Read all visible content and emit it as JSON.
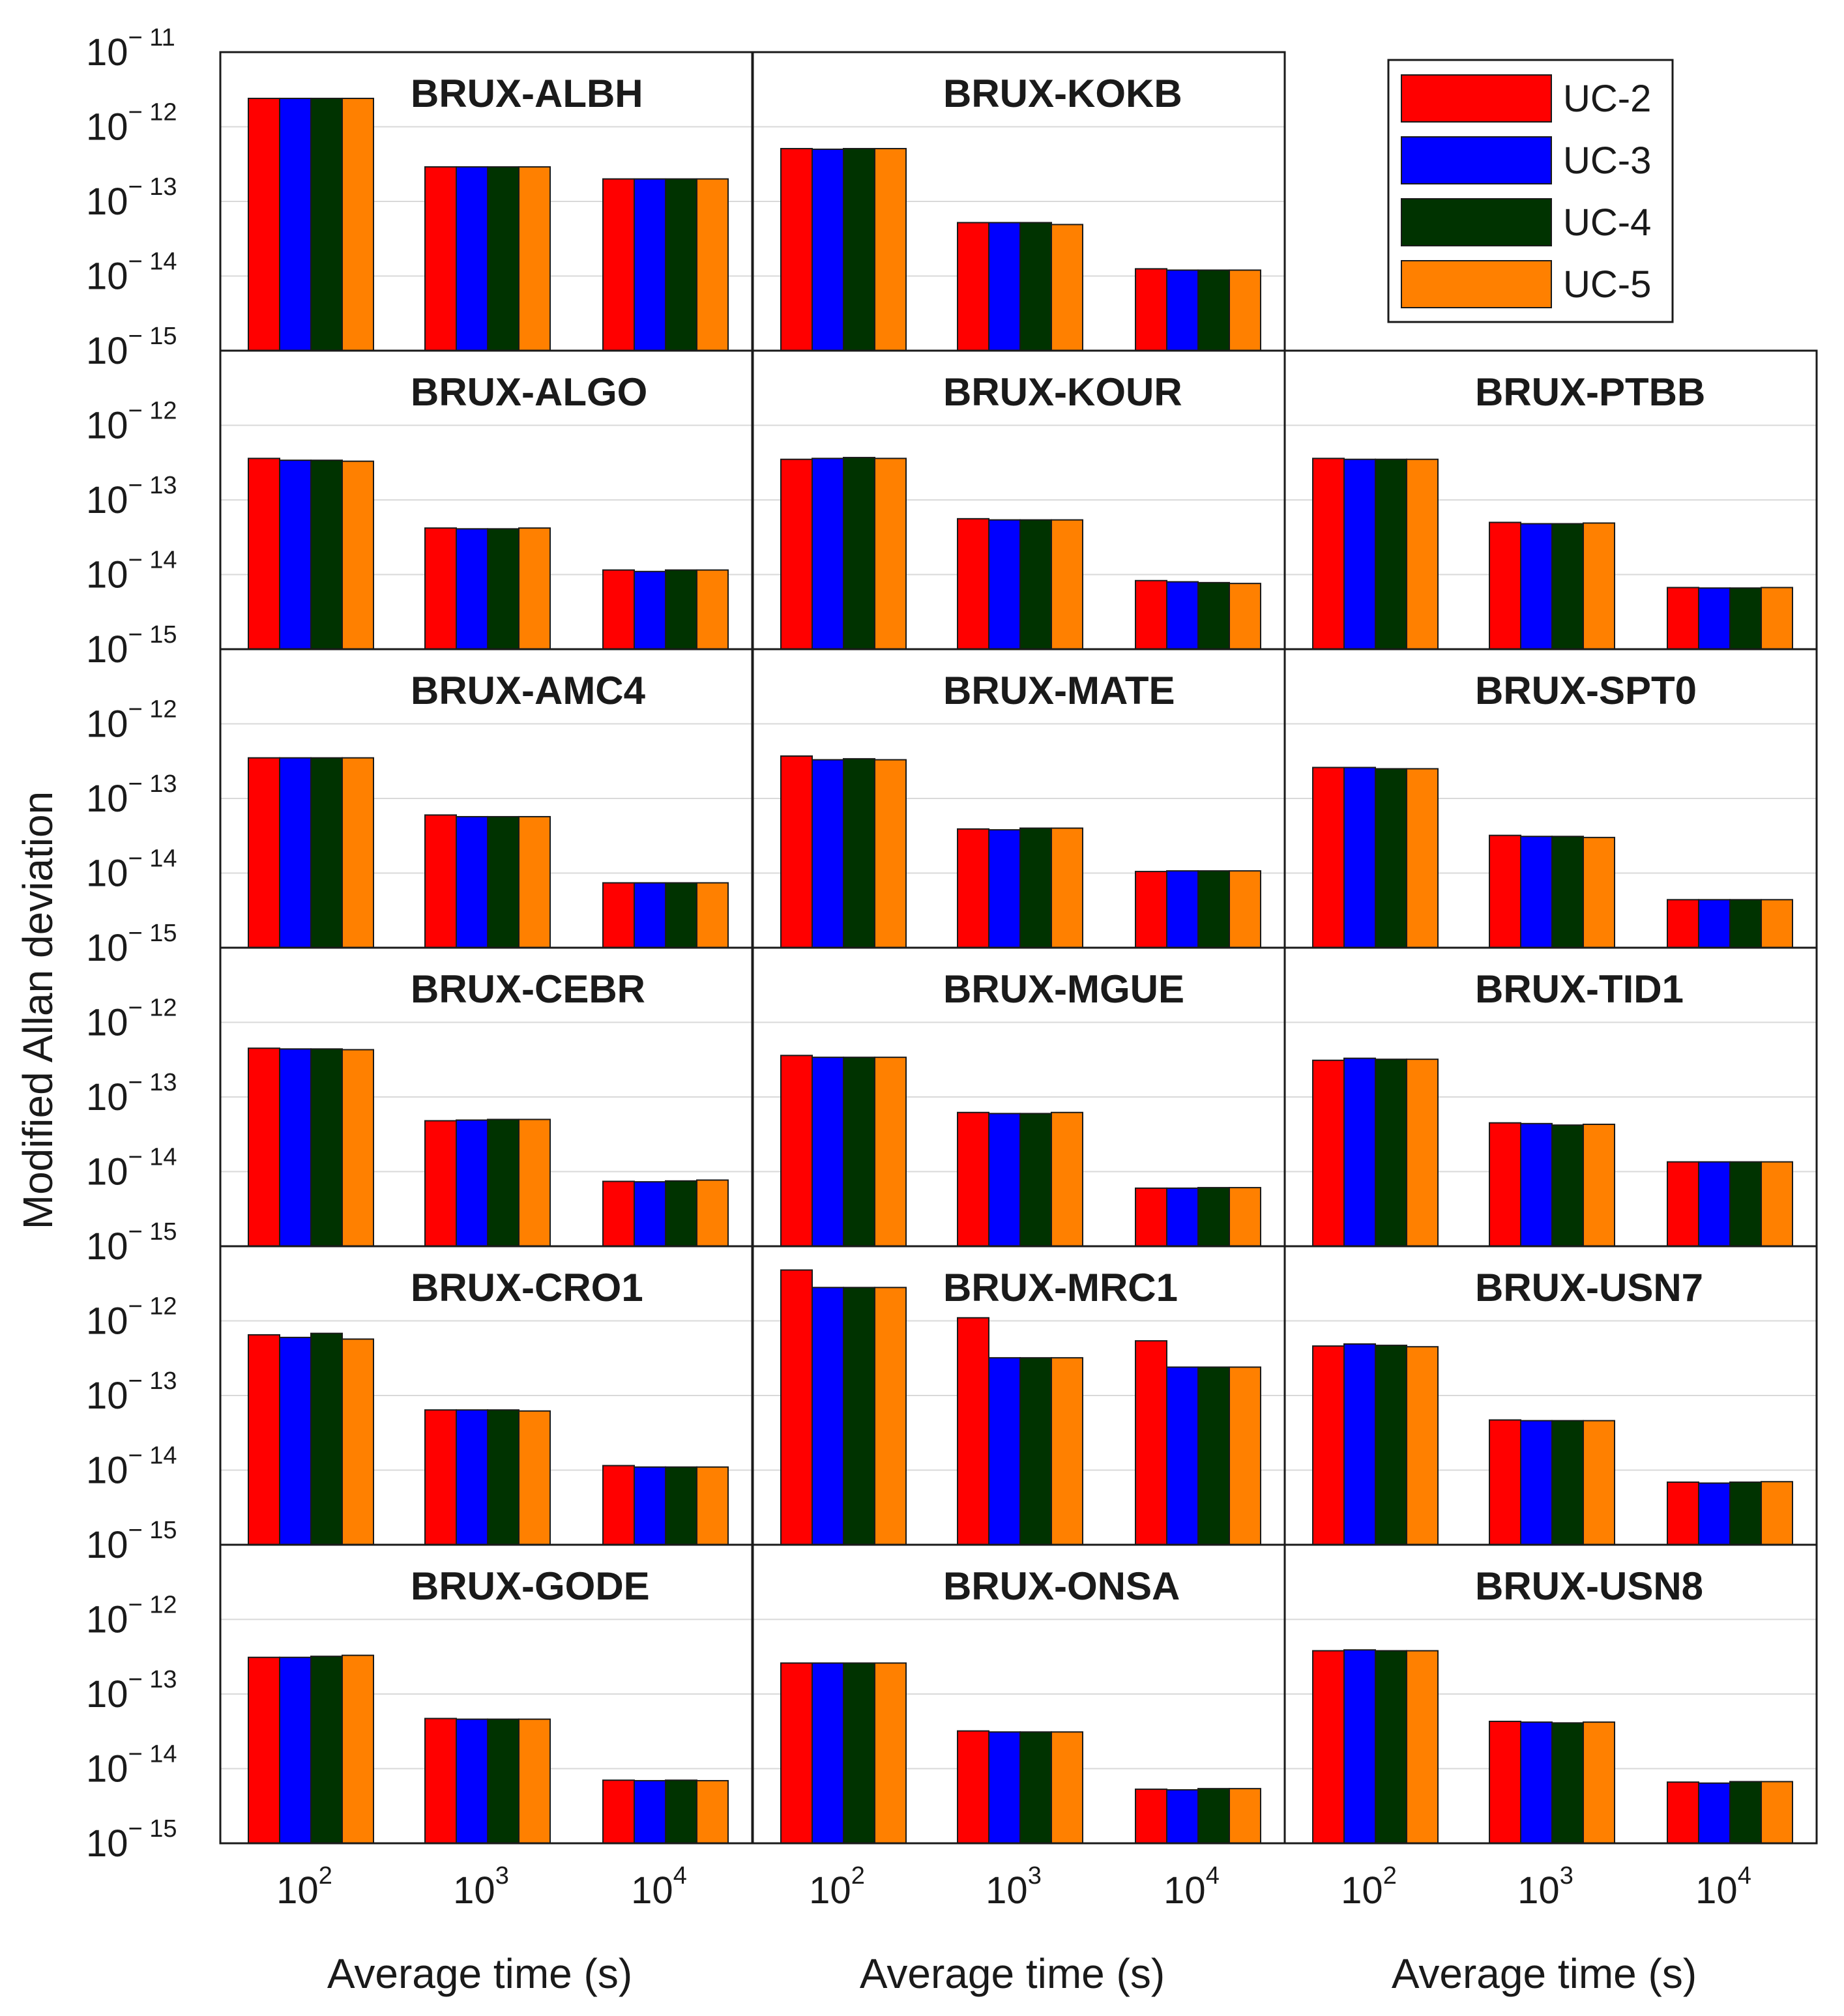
{
  "chart_data": {
    "type": "bar",
    "y_label": "Modified Allan deviation",
    "x_label": "Average time (s)",
    "y_scale": "log",
    "ylim": [
      1e-15,
      1e-11
    ],
    "y_ticks": [
      {
        "base": "10",
        "exp": "− 15"
      },
      {
        "base": "10",
        "exp": "− 14"
      },
      {
        "base": "10",
        "exp": "− 13"
      },
      {
        "base": "10",
        "exp": "− 12"
      },
      {
        "base": "10",
        "exp": "− 11"
      }
    ],
    "categories": [
      {
        "base": "10",
        "exp": "2"
      },
      {
        "base": "10",
        "exp": "3"
      },
      {
        "base": "10",
        "exp": "4"
      }
    ],
    "grid": "y-major",
    "legend": {
      "placement": "top-right",
      "entries": [
        {
          "name": "UC-2",
          "color": "#ff0000"
        },
        {
          "name": "UC-3",
          "color": "#0000ff"
        },
        {
          "name": "UC-4",
          "color": "#003300"
        },
        {
          "name": "UC-5",
          "color": "#ff8000"
        }
      ]
    },
    "panels": [
      {
        "title": "BRUX-ALBH",
        "values": [
          [
            2.4e-12,
            2.4e-12,
            2.4e-12,
            2.4e-12
          ],
          [
            2.9e-13,
            2.9e-13,
            2.9e-13,
            2.9e-13
          ],
          [
            2e-13,
            2e-13,
            2e-13,
            2e-13
          ]
        ]
      },
      {
        "title": "BRUX-ALGO",
        "values": [
          [
            3.6e-13,
            3.4e-13,
            3.4e-13,
            3.3e-13
          ],
          [
            4.2e-14,
            4.1e-14,
            4.1e-14,
            4.2e-14
          ],
          [
            1.15e-14,
            1.1e-14,
            1.15e-14,
            1.15e-14
          ]
        ]
      },
      {
        "title": "BRUX-AMC4",
        "values": [
          [
            3.5e-13,
            3.5e-13,
            3.5e-13,
            3.5e-13
          ],
          [
            6e-14,
            5.7e-14,
            5.7e-14,
            5.7e-14
          ],
          [
            7.4e-15,
            7.4e-15,
            7.4e-15,
            7.4e-15
          ]
        ]
      },
      {
        "title": "BRUX-CEBR",
        "values": [
          [
            4.5e-13,
            4.4e-13,
            4.4e-13,
            4.3e-13
          ],
          [
            4.8e-14,
            4.9e-14,
            5e-14,
            5e-14
          ],
          [
            7.4e-15,
            7.3e-15,
            7.5e-15,
            7.7e-15
          ]
        ]
      },
      {
        "title": "BRUX-CRO1",
        "values": [
          [
            6.5e-13,
            6e-13,
            6.8e-13,
            5.7e-13
          ],
          [
            6.4e-14,
            6.4e-14,
            6.4e-14,
            6.2e-14
          ],
          [
            1.15e-14,
            1.1e-14,
            1.1e-14,
            1.1e-14
          ]
        ]
      },
      {
        "title": "BRUX-GODE",
        "values": [
          [
            3.1e-13,
            3.1e-13,
            3.2e-13,
            3.3e-13
          ],
          [
            4.7e-14,
            4.6e-14,
            4.6e-14,
            4.6e-14
          ],
          [
            7e-15,
            6.9e-15,
            7e-15,
            6.9e-15
          ]
        ]
      },
      {
        "title": "BRUX-KOKB",
        "values": [
          [
            5.1e-13,
            5e-13,
            5.1e-13,
            5.1e-13
          ],
          [
            5.2e-14,
            5.2e-14,
            5.2e-14,
            4.9e-14
          ],
          [
            1.25e-14,
            1.2e-14,
            1.2e-14,
            1.2e-14
          ]
        ]
      },
      {
        "title": "BRUX-KOUR",
        "values": [
          [
            3.5e-13,
            3.6e-13,
            3.7e-13,
            3.6e-13
          ],
          [
            5.6e-14,
            5.4e-14,
            5.4e-14,
            5.4e-14
          ],
          [
            8.3e-15,
            8e-15,
            7.8e-15,
            7.6e-15
          ]
        ]
      },
      {
        "title": "BRUX-MATE",
        "values": [
          [
            3.7e-13,
            3.3e-13,
            3.4e-13,
            3.3e-13
          ],
          [
            3.9e-14,
            3.8e-14,
            4e-14,
            4e-14
          ],
          [
            1.05e-14,
            1.07e-14,
            1.07e-14,
            1.07e-14
          ]
        ]
      },
      {
        "title": "BRUX-MGUE",
        "values": [
          [
            3.6e-13,
            3.4e-13,
            3.4e-13,
            3.4e-13
          ],
          [
            6.2e-14,
            6e-14,
            6e-14,
            6.2e-14
          ],
          [
            6e-15,
            6e-15,
            6.1e-15,
            6.1e-15
          ]
        ]
      },
      {
        "title": "BRUX-MRC1",
        "values": [
          [
            4.8e-12,
            2.8e-12,
            2.8e-12,
            2.8e-12
          ],
          [
            1.1e-12,
            3.2e-13,
            3.2e-13,
            3.2e-13
          ],
          [
            5.4e-13,
            2.4e-13,
            2.4e-13,
            2.4e-13
          ]
        ]
      },
      {
        "title": "BRUX-ONSA",
        "values": [
          [
            2.6e-13,
            2.6e-13,
            2.6e-13,
            2.6e-13
          ],
          [
            3.2e-14,
            3.1e-14,
            3.1e-14,
            3.1e-14
          ],
          [
            5.3e-15,
            5.2e-15,
            5.4e-15,
            5.4e-15
          ]
        ]
      },
      {
        "title": "BRUX-PTBB",
        "values": [
          [
            3.6e-13,
            3.5e-13,
            3.5e-13,
            3.5e-13
          ],
          [
            5e-14,
            4.8e-14,
            4.8e-14,
            4.9e-14
          ],
          [
            6.7e-15,
            6.6e-15,
            6.6e-15,
            6.7e-15
          ]
        ]
      },
      {
        "title": "BRUX-SPT0",
        "values": [
          [
            2.6e-13,
            2.6e-13,
            2.5e-13,
            2.5e-13
          ],
          [
            3.2e-14,
            3.1e-14,
            3.1e-14,
            3e-14
          ],
          [
            4.4e-15,
            4.4e-15,
            4.4e-15,
            4.4e-15
          ]
        ]
      },
      {
        "title": "BRUX-TID1",
        "values": [
          [
            3.1e-13,
            3.3e-13,
            3.2e-13,
            3.2e-13
          ],
          [
            4.5e-14,
            4.4e-14,
            4.2e-14,
            4.3e-14
          ],
          [
            1.35e-14,
            1.35e-14,
            1.35e-14,
            1.35e-14
          ]
        ]
      },
      {
        "title": "BRUX-USN7",
        "values": [
          [
            4.6e-13,
            4.9e-13,
            4.7e-13,
            4.5e-13
          ],
          [
            4.7e-14,
            4.6e-14,
            4.6e-14,
            4.6e-14
          ],
          [
            6.9e-15,
            6.7e-15,
            6.9e-15,
            7e-15
          ]
        ]
      },
      {
        "title": "BRUX-USN8",
        "values": [
          [
            3.8e-13,
            3.9e-13,
            3.8e-13,
            3.8e-13
          ],
          [
            4.3e-14,
            4.2e-14,
            4.1e-14,
            4.2e-14
          ],
          [
            6.6e-15,
            6.4e-15,
            6.7e-15,
            6.7e-15
          ]
        ]
      }
    ]
  }
}
